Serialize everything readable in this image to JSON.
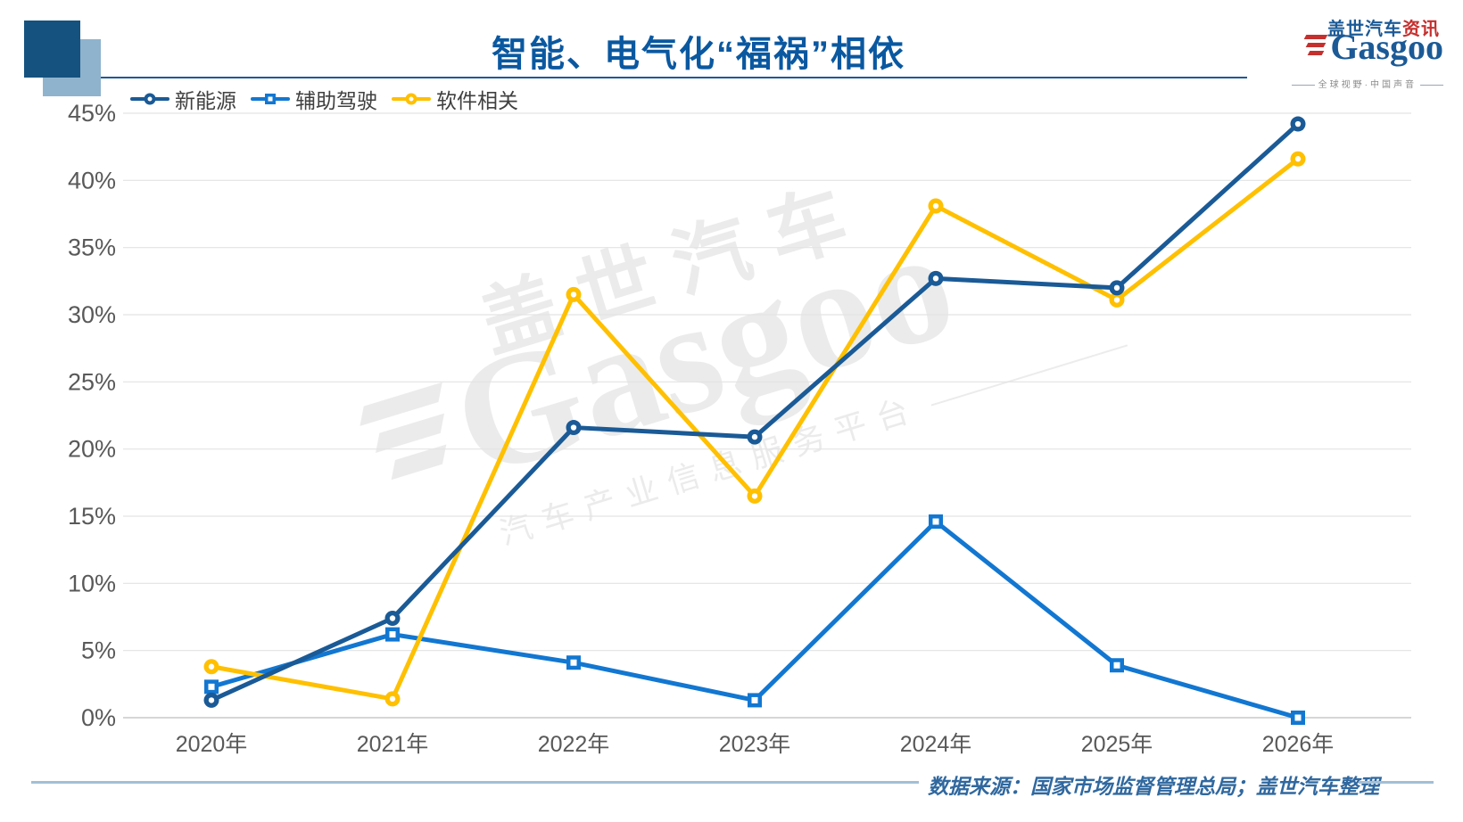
{
  "header": {
    "title": "智能、电气化“福祸”相依",
    "logo": {
      "brand_cn": "盖世汽车",
      "brand_cn_suffix": "资讯",
      "brand_en": "Gasgoo",
      "tagline": "全球视野·中国声音"
    }
  },
  "watermark": {
    "brand_cn": "盖世汽车",
    "brand_en": "Gasgoo",
    "tagline": "汽车产业信息服务平台"
  },
  "footer": {
    "source_text": "数据来源：国家市场监督管理总局；盖世汽车整理"
  },
  "chart_data": {
    "type": "line",
    "title": "智能、电气化“福祸”相依",
    "categories": [
      "2020年",
      "2021年",
      "2022年",
      "2023年",
      "2024年",
      "2025年",
      "2026年"
    ],
    "series": [
      {
        "name": "新能源",
        "color": "#1a5a96",
        "marker": "circle",
        "values": [
          1.3,
          7.4,
          21.6,
          20.9,
          32.7,
          32.0,
          44.2
        ]
      },
      {
        "name": "辅助驾驶",
        "color": "#1277d1",
        "marker": "square",
        "values": [
          2.3,
          6.2,
          4.1,
          1.3,
          14.6,
          3.9,
          0.0
        ]
      },
      {
        "name": "软件相关",
        "color": "#ffc000",
        "marker": "circle",
        "values": [
          3.8,
          1.4,
          31.5,
          16.5,
          38.1,
          31.1,
          41.6
        ]
      }
    ],
    "xlabel": "",
    "ylabel": "",
    "ylim": [
      0,
      45
    ],
    "y_tick_step": 5,
    "y_tick_suffix": "%",
    "grid": "horizontal",
    "legend_position": "top-left",
    "axis_text_color": "#595959",
    "gridline_color": "#e3e3e3",
    "zeroline_color": "#c9c9c9"
  }
}
